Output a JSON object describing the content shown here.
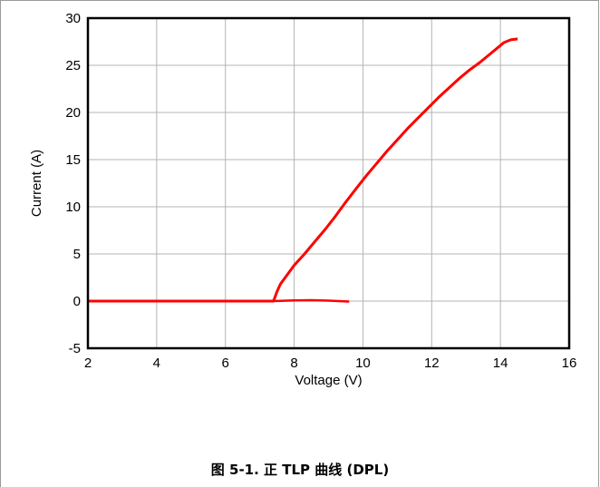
{
  "caption": "图 5-1. 正 TLP 曲线 (DPL)",
  "chart_data": {
    "type": "line",
    "title": "",
    "xlabel": "Voltage (V)",
    "ylabel": "Current (A)",
    "xlim": [
      2,
      16
    ],
    "ylim": [
      -5,
      30
    ],
    "xticks": [
      2,
      4,
      6,
      8,
      10,
      12,
      14,
      16
    ],
    "yticks": [
      -5,
      0,
      5,
      10,
      15,
      20,
      25,
      30
    ],
    "grid": true,
    "legend": "none",
    "series": [
      {
        "color": "#ff0000",
        "x": [
          2.0,
          4.0,
          6.0,
          7.4,
          7.45,
          7.5,
          7.6,
          7.8,
          8.0,
          8.3,
          8.6,
          8.9,
          9.2,
          9.5,
          9.8,
          10.1,
          10.4,
          10.7,
          11.0,
          11.3,
          11.6,
          11.9,
          12.2,
          12.5,
          12.8,
          13.1,
          13.4,
          13.7,
          13.9,
          14.1,
          14.3,
          14.5
        ],
        "y": [
          0.0,
          0.0,
          0.0,
          0.0,
          0.5,
          1.0,
          1.8,
          2.8,
          3.8,
          5.0,
          6.3,
          7.6,
          9.0,
          10.5,
          11.9,
          13.3,
          14.6,
          15.9,
          17.1,
          18.3,
          19.4,
          20.5,
          21.6,
          22.6,
          23.6,
          24.5,
          25.3,
          26.2,
          26.8,
          27.4,
          27.7,
          27.8
        ]
      },
      {
        "color": "#ff0000",
        "x": [
          7.4,
          8.0,
          8.5,
          9.0,
          9.6
        ],
        "y": [
          0.0,
          0.08,
          0.1,
          0.05,
          -0.05
        ]
      }
    ]
  }
}
